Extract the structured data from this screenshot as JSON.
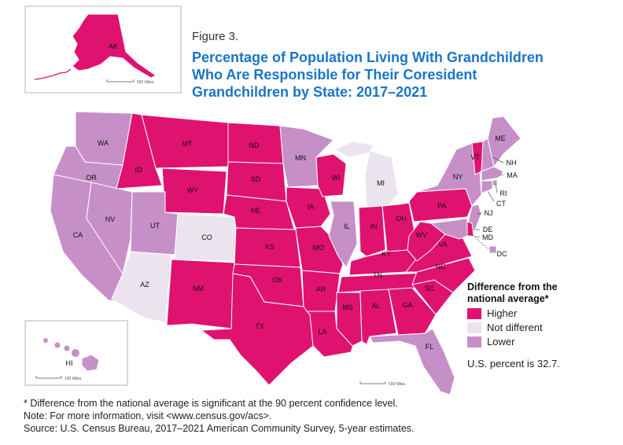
{
  "figure_label": "Figure 3.",
  "title_lines": [
    "Percentage of Population Living With Grandchildren",
    "Who Are Responsible for Their Coresident",
    "Grandchildren by State: 2017–2021"
  ],
  "colors": {
    "higher": "#e0126f",
    "not_different": "#ebe3ee",
    "lower": "#c78fc7",
    "border": "#ffffff",
    "inset_frame": "#b5b5b5"
  },
  "legend": {
    "title_line1": "Difference from the",
    "title_line2": "national average*",
    "items": [
      {
        "label": "Higher",
        "category": "higher"
      },
      {
        "label": "Not different",
        "category": "not_different"
      },
      {
        "label": "Lower",
        "category": "lower"
      }
    ]
  },
  "us_percent_text": "U.S. percent is 32.7.",
  "scale_labels": {
    "alaska": "500 Miles",
    "hawaii": "100 Miles",
    "conus": "500 Miles"
  },
  "states": [
    {
      "abbr": "WA",
      "category": "lower"
    },
    {
      "abbr": "OR",
      "category": "lower"
    },
    {
      "abbr": "CA",
      "category": "lower"
    },
    {
      "abbr": "NV",
      "category": "lower"
    },
    {
      "abbr": "ID",
      "category": "higher"
    },
    {
      "abbr": "MT",
      "category": "higher"
    },
    {
      "abbr": "WY",
      "category": "higher"
    },
    {
      "abbr": "UT",
      "category": "lower"
    },
    {
      "abbr": "CO",
      "category": "not_different"
    },
    {
      "abbr": "AZ",
      "category": "not_different"
    },
    {
      "abbr": "NM",
      "category": "higher"
    },
    {
      "abbr": "ND",
      "category": "higher"
    },
    {
      "abbr": "SD",
      "category": "higher"
    },
    {
      "abbr": "NE",
      "category": "higher"
    },
    {
      "abbr": "KS",
      "category": "higher"
    },
    {
      "abbr": "OK",
      "category": "higher"
    },
    {
      "abbr": "TX",
      "category": "higher"
    },
    {
      "abbr": "MN",
      "category": "lower"
    },
    {
      "abbr": "IA",
      "category": "higher"
    },
    {
      "abbr": "MO",
      "category": "higher"
    },
    {
      "abbr": "AR",
      "category": "higher"
    },
    {
      "abbr": "LA",
      "category": "higher"
    },
    {
      "abbr": "WI",
      "category": "higher"
    },
    {
      "abbr": "IL",
      "category": "lower"
    },
    {
      "abbr": "MI",
      "category": "not_different"
    },
    {
      "abbr": "IN",
      "category": "higher"
    },
    {
      "abbr": "OH",
      "category": "higher"
    },
    {
      "abbr": "KY",
      "category": "higher"
    },
    {
      "abbr": "TN",
      "category": "higher"
    },
    {
      "abbr": "MS",
      "category": "higher"
    },
    {
      "abbr": "AL",
      "category": "higher"
    },
    {
      "abbr": "GA",
      "category": "higher"
    },
    {
      "abbr": "FL",
      "category": "lower"
    },
    {
      "abbr": "SC",
      "category": "higher"
    },
    {
      "abbr": "NC",
      "category": "higher"
    },
    {
      "abbr": "VA",
      "category": "higher"
    },
    {
      "abbr": "WV",
      "category": "higher"
    },
    {
      "abbr": "PA",
      "category": "higher"
    },
    {
      "abbr": "NY",
      "category": "lower"
    },
    {
      "abbr": "VT",
      "category": "higher"
    },
    {
      "abbr": "NH",
      "category": "lower"
    },
    {
      "abbr": "ME",
      "category": "lower"
    },
    {
      "abbr": "MA",
      "category": "lower"
    },
    {
      "abbr": "RI",
      "category": "lower"
    },
    {
      "abbr": "CT",
      "category": "lower"
    },
    {
      "abbr": "NJ",
      "category": "lower"
    },
    {
      "abbr": "DE",
      "category": "higher"
    },
    {
      "abbr": "MD",
      "category": "lower"
    },
    {
      "abbr": "DC",
      "category": "lower"
    },
    {
      "abbr": "AK",
      "category": "higher"
    },
    {
      "abbr": "HI",
      "category": "lower"
    }
  ],
  "notes": [
    "* Difference from the national average is significant at the 90 percent confidence level.",
    "Note: For more information, visit <www.census.gov/acs>.",
    "Source: U.S. Census Bureau, 2017–2021 American Community Survey, 5-year estimates."
  ]
}
